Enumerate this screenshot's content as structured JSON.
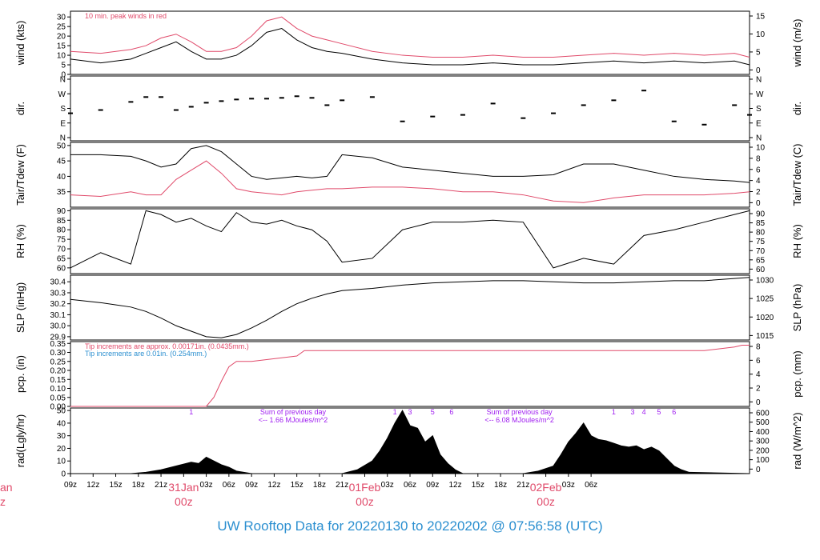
{
  "footer": {
    "text": "UW Rooftop Data for 20220130  to  20220202 @ 07:56:58  (UTC)",
    "color": "#2b8fd0"
  },
  "colors": {
    "red": "#e04a6a",
    "blue": "#2b8fd0",
    "purple": "#a020f0",
    "black": "#000000"
  },
  "chart_data": [
    {
      "type": "line",
      "ylabel": "wind (kts)",
      "ylabel_right": "wind (m/s)",
      "ylim": [
        0,
        33
      ],
      "yticks": [
        "0",
        "5",
        "10",
        "15",
        "20",
        "25",
        "30"
      ],
      "yticks_right": [
        "0",
        "5",
        "10",
        "15"
      ],
      "annotation": "10 min. peak winds in red",
      "series": [
        {
          "name": "wind",
          "color": "#000000",
          "x": [
            0,
            4,
            8,
            10,
            12,
            14,
            16,
            18,
            20,
            22,
            24,
            26,
            28,
            30,
            32,
            34,
            36,
            40,
            44,
            48,
            52,
            56,
            60,
            64,
            68,
            72,
            76,
            80,
            84,
            88,
            90
          ],
          "values": [
            8,
            6,
            8,
            11,
            14,
            17,
            12,
            8,
            8,
            10,
            15,
            22,
            24,
            18,
            14,
            12,
            11,
            8,
            6,
            5,
            5,
            6,
            5,
            5,
            6,
            7,
            6,
            7,
            6,
            7,
            5
          ]
        },
        {
          "name": "peak",
          "color": "#e04a6a",
          "x": [
            0,
            4,
            8,
            10,
            12,
            14,
            16,
            18,
            20,
            22,
            24,
            26,
            28,
            30,
            32,
            34,
            36,
            40,
            44,
            48,
            52,
            56,
            60,
            64,
            68,
            72,
            76,
            80,
            84,
            88,
            90
          ],
          "values": [
            12,
            11,
            13,
            15,
            19,
            21,
            17,
            12,
            12,
            14,
            20,
            28,
            30,
            24,
            20,
            18,
            16,
            12,
            10,
            9,
            9,
            10,
            9,
            9,
            10,
            11,
            10,
            11,
            10,
            11,
            9
          ]
        }
      ]
    },
    {
      "type": "scatter",
      "ylabel": "dir.",
      "ylabel_right": "dir.",
      "yticks": [
        "N",
        "E",
        "S",
        "W",
        "N"
      ],
      "series": [
        {
          "name": "dir",
          "color": "#000000",
          "x": [
            0,
            4,
            8,
            10,
            12,
            14,
            16,
            18,
            20,
            22,
            24,
            26,
            28,
            30,
            32,
            34,
            36,
            40,
            44,
            48,
            52,
            56,
            60,
            64,
            68,
            72,
            76,
            80,
            84,
            88,
            90
          ],
          "values": [
            150,
            170,
            220,
            250,
            250,
            170,
            190,
            215,
            225,
            235,
            240,
            240,
            245,
            255,
            245,
            200,
            230,
            250,
            100,
            130,
            140,
            210,
            120,
            150,
            200,
            230,
            290,
            100,
            80,
            200,
            140
          ]
        }
      ]
    },
    {
      "type": "line",
      "ylabel": "Tair/Tdew (F)",
      "ylabel_right": "Tair/Tdew (C)",
      "ylim": [
        30,
        51
      ],
      "yticks": [
        "35",
        "40",
        "45",
        "50"
      ],
      "yticks_right": [
        "0",
        "2",
        "4",
        "6",
        "8",
        "10"
      ],
      "series": [
        {
          "name": "Tair",
          "color": "#000000",
          "x": [
            0,
            4,
            8,
            10,
            12,
            14,
            16,
            18,
            20,
            22,
            24,
            26,
            28,
            30,
            32,
            34,
            36,
            40,
            44,
            48,
            52,
            56,
            60,
            64,
            68,
            72,
            76,
            80,
            84,
            88,
            90
          ],
          "values": [
            47,
            47,
            46.5,
            45,
            43,
            44,
            49,
            50,
            48,
            44,
            40,
            39,
            39.5,
            40,
            39.5,
            40,
            47,
            46,
            43,
            42,
            41,
            40,
            40,
            40.5,
            44,
            44,
            42,
            40,
            39,
            38.5,
            38
          ]
        },
        {
          "name": "Tdew",
          "color": "#e04a6a",
          "x": [
            0,
            4,
            8,
            10,
            12,
            14,
            16,
            18,
            20,
            22,
            24,
            26,
            28,
            30,
            32,
            34,
            36,
            40,
            44,
            48,
            52,
            56,
            60,
            64,
            68,
            72,
            76,
            80,
            84,
            88,
            90
          ],
          "values": [
            34,
            33.5,
            35,
            34,
            34,
            39,
            42,
            45,
            41,
            36,
            35,
            34.5,
            34,
            35,
            35.5,
            36,
            36,
            36.5,
            36.5,
            36,
            35,
            35,
            34,
            32,
            31.5,
            33,
            34,
            34,
            34,
            34.5,
            35
          ]
        }
      ]
    },
    {
      "type": "line",
      "ylabel": "RH (%)",
      "ylabel_right": "RH (%)",
      "ylim": [
        57,
        91
      ],
      "yticks": [
        "60",
        "65",
        "70",
        "75",
        "80",
        "85",
        "90"
      ],
      "yticks_right": [
        "60",
        "65",
        "70",
        "75",
        "80",
        "85",
        "90"
      ],
      "series": [
        {
          "name": "RH",
          "color": "#000000",
          "x": [
            0,
            4,
            8,
            10,
            12,
            14,
            16,
            18,
            20,
            22,
            24,
            26,
            28,
            30,
            32,
            34,
            36,
            40,
            44,
            48,
            52,
            56,
            60,
            64,
            68,
            72,
            76,
            80,
            84,
            88,
            90
          ],
          "values": [
            60,
            68,
            62,
            90,
            88,
            84,
            86,
            82,
            79,
            89,
            84,
            83,
            85,
            82,
            80,
            74,
            63,
            65,
            80,
            84,
            84,
            85,
            84,
            60,
            65,
            62,
            77,
            80,
            84,
            88,
            90
          ]
        }
      ]
    },
    {
      "type": "line",
      "ylabel": "SLP (inHg)",
      "ylabel_right": "SLP (hPa)",
      "ylim": [
        29.87,
        30.46
      ],
      "yticks": [
        "29.9",
        "30.0",
        "30.1",
        "30.2",
        "30.3",
        "30.4"
      ],
      "yticks_right": [
        "1015",
        "1020",
        "1025",
        "1030"
      ],
      "series": [
        {
          "name": "SLP",
          "color": "#000000",
          "x": [
            0,
            4,
            8,
            10,
            12,
            14,
            16,
            18,
            20,
            22,
            24,
            26,
            28,
            30,
            32,
            34,
            36,
            40,
            44,
            48,
            52,
            56,
            60,
            64,
            68,
            72,
            76,
            80,
            84,
            88,
            90
          ],
          "values": [
            30.24,
            30.21,
            30.17,
            30.13,
            30.07,
            30.0,
            29.95,
            29.9,
            29.89,
            29.92,
            29.98,
            30.05,
            30.13,
            30.2,
            30.25,
            30.29,
            30.32,
            30.34,
            30.37,
            30.39,
            30.4,
            30.41,
            30.41,
            30.4,
            30.39,
            30.39,
            30.4,
            30.41,
            30.41,
            30.43,
            30.44
          ]
        }
      ]
    },
    {
      "type": "line",
      "ylabel": "pcp. (in)",
      "ylabel_right": "pcp. (mm)",
      "ylim": [
        0,
        0.36
      ],
      "yticks": [
        "0.00",
        "0.05",
        "0.10",
        "0.15",
        "0.20",
        "0.25",
        "0.30",
        "0.35"
      ],
      "yticks_right": [
        "0",
        "2",
        "4",
        "6",
        "8"
      ],
      "annotation_1": "Tip increments are approx. 0.00171in. (0.0435mm.)",
      "annotation_2": "Tip increments are 0.01in. (0.254mm.)",
      "series": [
        {
          "name": "pcp",
          "color": "#e04a6a",
          "x": [
            0,
            4,
            8,
            12,
            16,
            18,
            19,
            20,
            21,
            22,
            24,
            26,
            28,
            30,
            31,
            32,
            36,
            40,
            44,
            48,
            52,
            56,
            60,
            64,
            68,
            72,
            76,
            80,
            84,
            88,
            89,
            90
          ],
          "values": [
            0,
            0,
            0,
            0,
            0,
            0,
            0.05,
            0.14,
            0.22,
            0.25,
            0.25,
            0.26,
            0.27,
            0.28,
            0.31,
            0.31,
            0.31,
            0.31,
            0.31,
            0.31,
            0.31,
            0.31,
            0.31,
            0.31,
            0.31,
            0.31,
            0.31,
            0.31,
            0.31,
            0.33,
            0.34,
            0.34
          ]
        }
      ]
    },
    {
      "type": "area",
      "ylabel": "rad(Lgly/hr)",
      "ylabel_right": "rad (W/m^2)",
      "ylim": [
        0,
        52
      ],
      "yticks": [
        "0",
        "10",
        "20",
        "30",
        "40",
        "50"
      ],
      "yticks_right": [
        "0",
        "100",
        "200",
        "300",
        "400",
        "500",
        "600"
      ],
      "annotations": [
        {
          "label": "Sum of previous day",
          "x": 29.5
        },
        {
          "label": "<-- 1.66 MJoules/m^2",
          "x": 29.5
        },
        {
          "label": "Sum of previous day",
          "x": 59.5
        },
        {
          "label": "<-- 6.08 MJoules/m^2",
          "x": 59.5
        }
      ],
      "hour_marks": [
        {
          "label": "1",
          "x": 16
        },
        {
          "label": "1",
          "x": 43
        },
        {
          "label": "3",
          "x": 45
        },
        {
          "label": "5",
          "x": 48
        },
        {
          "label": "6",
          "x": 50.5
        },
        {
          "label": "1",
          "x": 72
        },
        {
          "label": "3",
          "x": 74.5
        },
        {
          "label": "4",
          "x": 76
        },
        {
          "label": "5",
          "x": 78
        },
        {
          "label": "6",
          "x": 80
        }
      ],
      "series": [
        {
          "name": "rad",
          "color": "#000000",
          "x": [
            8,
            10,
            12,
            14,
            16,
            17,
            18,
            19,
            20,
            21,
            22,
            24,
            36,
            38,
            40,
            41,
            42,
            43,
            44,
            45,
            46,
            47,
            48,
            49,
            50,
            51,
            52,
            60,
            62,
            64,
            65,
            66,
            67,
            68,
            69,
            70,
            71,
            72,
            73,
            74,
            75,
            76,
            77,
            78,
            79,
            80,
            81,
            82,
            90
          ],
          "values": [
            0,
            1,
            3,
            6,
            9,
            8,
            13,
            10,
            7,
            5,
            2,
            0,
            0,
            3,
            10,
            18,
            28,
            40,
            50,
            38,
            36,
            25,
            30,
            15,
            8,
            3,
            0,
            0,
            2,
            6,
            15,
            25,
            32,
            40,
            30,
            27,
            26,
            24,
            22,
            21,
            22,
            19,
            21,
            18,
            12,
            6,
            3,
            1,
            0
          ]
        }
      ]
    }
  ],
  "x_axis": {
    "xlim": [
      0,
      90
    ],
    "ticks": [
      {
        "label": "09z",
        "x": 0
      },
      {
        "label": "12z",
        "x": 3
      },
      {
        "label": "15z",
        "x": 6
      },
      {
        "label": "18z",
        "x": 9
      },
      {
        "label": "21z",
        "x": 12
      },
      {
        "label": "03z",
        "x": 18
      },
      {
        "label": "06z",
        "x": 21
      },
      {
        "label": "09z",
        "x": 24
      },
      {
        "label": "12z",
        "x": 27
      },
      {
        "label": "15z",
        "x": 30
      },
      {
        "label": "18z",
        "x": 33
      },
      {
        "label": "21z",
        "x": 36
      },
      {
        "label": "03z",
        "x": 42
      },
      {
        "label": "06z",
        "x": 45
      },
      {
        "label": "09z",
        "x": 48
      },
      {
        "label": "12z",
        "x": 51
      },
      {
        "label": "15z",
        "x": 54
      },
      {
        "label": "18z",
        "x": 57
      },
      {
        "label": "21z",
        "x": 60
      },
      {
        "label": "03z",
        "x": 66
      },
      {
        "label": "06z",
        "x": 69
      }
    ],
    "day_labels": [
      {
        "label": "31Jan",
        "sub": "00z",
        "x": 15
      },
      {
        "label": "01Feb",
        "sub": "00z",
        "x": 39
      },
      {
        "label": "02Feb",
        "sub": "00z",
        "x": 63
      }
    ],
    "edge_label": {
      "label": "an",
      "sub": "z"
    }
  }
}
